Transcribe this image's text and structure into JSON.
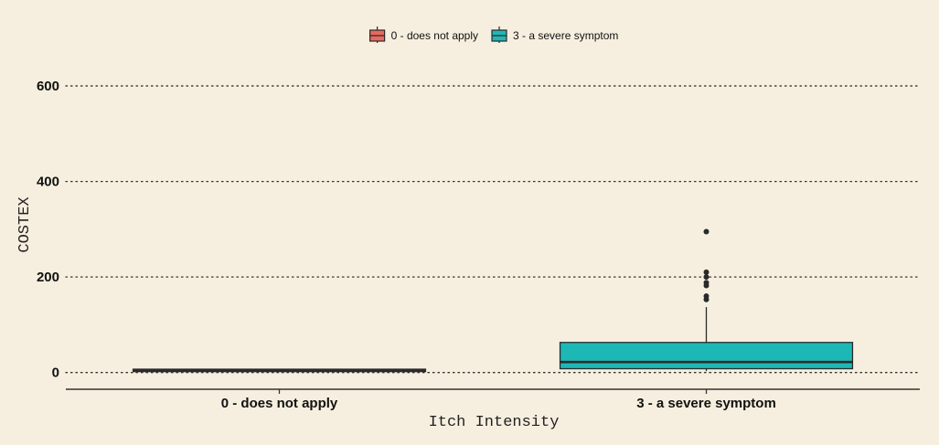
{
  "chart_data": {
    "type": "box",
    "title": "",
    "xlabel": "Itch Intensity",
    "ylabel": "COSTEX",
    "ylim": [
      -35,
      690
    ],
    "y_ticks": [
      0,
      200,
      400,
      600
    ],
    "grid": "horizontal dotted",
    "legend_position": "top",
    "categories": [
      "0 - does not apply",
      "3 - a severe symptom"
    ],
    "series": [
      {
        "name": "0 - does not apply",
        "color": "#e8695e",
        "box": {
          "whisker_low": 2,
          "q1": 2,
          "median": 5,
          "q3": 7,
          "whisker_high": 8
        },
        "outliers": []
      },
      {
        "name": "3 - a severe symptom",
        "color": "#1db8b6",
        "box": {
          "whisker_low": 3,
          "q1": 8,
          "median": 22,
          "q3": 63,
          "whisker_high": 137
        },
        "outliers": [
          295,
          210,
          200,
          188,
          182,
          160,
          153
        ]
      }
    ]
  }
}
